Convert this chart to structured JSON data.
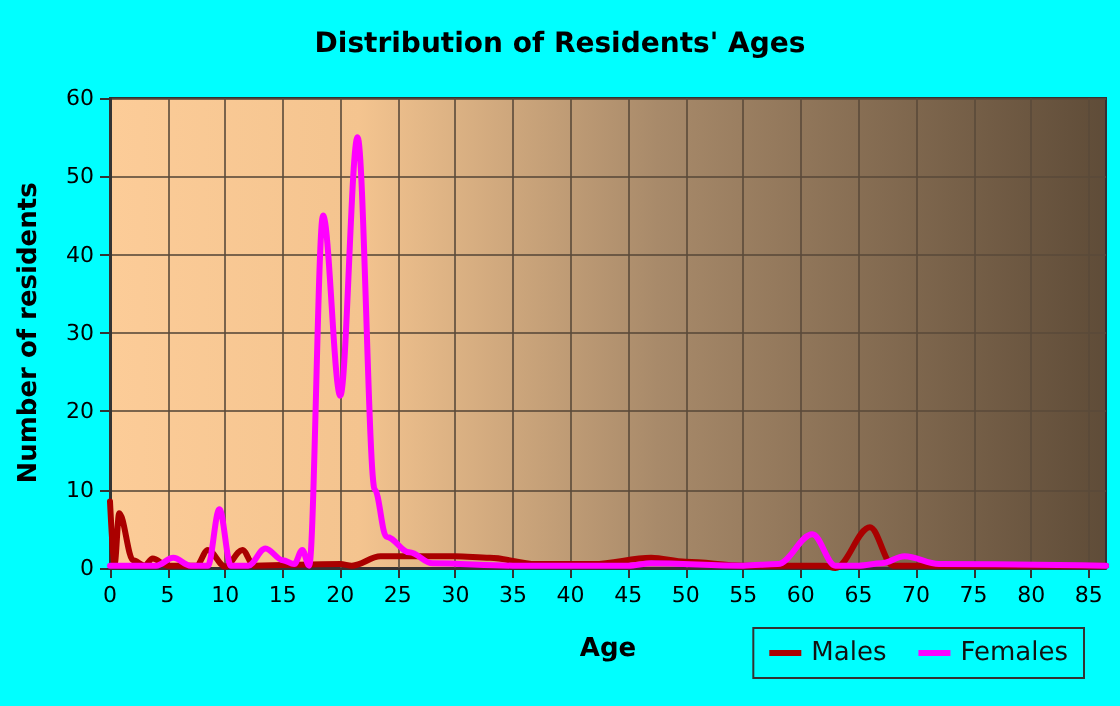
{
  "chart_data": {
    "type": "line",
    "title": "Distribution of Residents' Ages",
    "xlabel": "Age",
    "ylabel": "Number of residents",
    "xlim": [
      0,
      86.5
    ],
    "xticks": [
      0,
      5,
      10,
      15,
      20,
      25,
      30,
      35,
      40,
      45,
      50,
      55,
      60,
      65,
      70,
      75,
      80,
      85
    ],
    "ylim": [
      0,
      60
    ],
    "yticks": [
      0,
      10,
      20,
      30,
      40,
      50,
      60
    ],
    "grid": true,
    "legend": "bottom right",
    "marker": "none",
    "line_style": "solid",
    "series": [
      {
        "name": "Males",
        "color": "#aa0000",
        "x": [
          0,
          0.4,
          0.8,
          2,
          3,
          3.7,
          5,
          7.5,
          8.5,
          10,
          11.5,
          12.5,
          20,
          21,
          23.5,
          30,
          33,
          37,
          42,
          47,
          50,
          55,
          62,
          63,
          66,
          68,
          86.5
        ],
        "values": [
          8.5,
          0.5,
          7,
          1,
          0.3,
          1.2,
          0.3,
          0.3,
          2.3,
          0.2,
          2.3,
          0.3,
          0.5,
          0.3,
          1.5,
          1.5,
          1.3,
          0.5,
          0.5,
          1.3,
          0.8,
          0.3,
          0.3,
          0,
          5.2,
          0.3,
          0.3
        ]
      },
      {
        "name": "Females",
        "color": "#ff00ff",
        "x": [
          0,
          4,
          5.5,
          7,
          8.5,
          9.5,
          10.5,
          12,
          13.5,
          15,
          16,
          16.7,
          17.3,
          18.5,
          20,
          21.5,
          23,
          24,
          26,
          28,
          35,
          45,
          47,
          55,
          58,
          61,
          63,
          65,
          67,
          69,
          72,
          86.5
        ],
        "values": [
          0.3,
          0.3,
          1.3,
          0.3,
          0.3,
          7.5,
          0.3,
          0.3,
          2.5,
          1,
          0.5,
          2.3,
          0.3,
          45,
          22,
          55,
          10,
          4,
          2,
          0.6,
          0.3,
          0.3,
          0.6,
          0.3,
          0.5,
          4.3,
          0.3,
          0.3,
          0.6,
          1.5,
          0.5,
          0.3
        ]
      }
    ]
  }
}
